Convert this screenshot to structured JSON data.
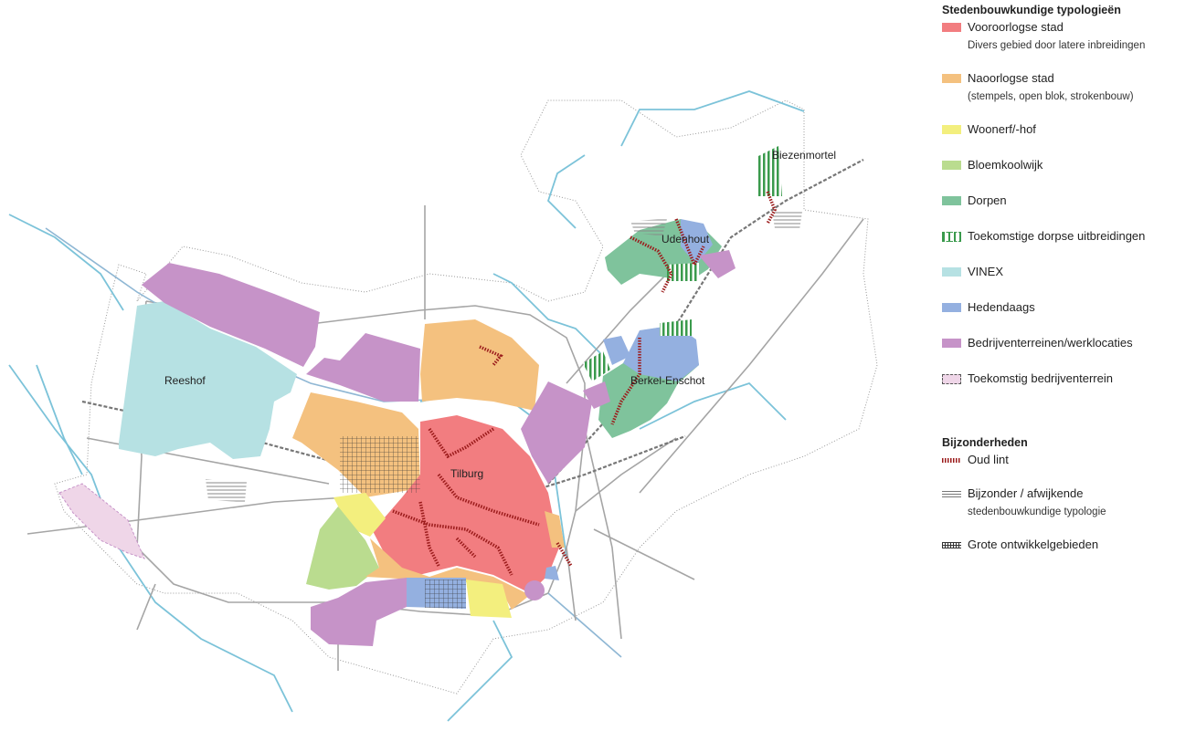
{
  "map": {
    "place_labels": {
      "reeshof": "Reeshof",
      "tilburg": "Tilburg",
      "udenhout": "Udenhout",
      "berkel_enschot": "Berkel-Enschot",
      "biezenmortel": "Biezenmortel"
    },
    "colors": {
      "vooroorlogse": "#f27d80",
      "naoorlogse": "#f4c17f",
      "woonerf": "#f3ef7e",
      "bloemkool": "#badc8f",
      "dorpen": "#7fc39c",
      "vinex": "#b6e1e3",
      "hedendaags": "#94b0e0",
      "bedrijven": "#c693c8",
      "toekomstig_bedrijven": "#efd6e8",
      "oud_lint": "#9b1b1b",
      "water": "#7cc3d9",
      "roads": "#a0a0a0"
    }
  },
  "legend": {
    "title": "Stedenbouwkundige typologieën",
    "items": [
      {
        "label": "Vooroorlogse stad",
        "sub": "Divers gebied door latere inbreidingen",
        "icon": "swatch",
        "color": "#f27d80"
      },
      {
        "label": "Naoorlogse stad",
        "sub": "(stempels, open blok, strokenbouw)",
        "icon": "swatch",
        "color": "#f4c17f"
      },
      {
        "label": "Woonerf/-hof",
        "icon": "swatch",
        "color": "#f3ef7e"
      },
      {
        "label": "Bloemkoolwijk",
        "icon": "swatch",
        "color": "#badc8f"
      },
      {
        "label": "Dorpen",
        "icon": "swatch",
        "color": "#7fc39c"
      },
      {
        "label": "Toekomstige dorpse uitbreidingen",
        "icon": "green-striped-dashed-box"
      },
      {
        "label": "VINEX",
        "icon": "swatch",
        "color": "#b6e1e3"
      },
      {
        "label": "Hedendaags",
        "icon": "swatch",
        "color": "#94b0e0"
      },
      {
        "label": "Bedrijventerreinen/werklocaties",
        "icon": "swatch",
        "color": "#c693c8"
      },
      {
        "label": "Toekomstig bedrijventerrein",
        "icon": "pink-dashed-box"
      }
    ],
    "special_title": "Bijzonderheden",
    "special_items": [
      {
        "label": "Oud lint",
        "icon": "red-hatched-line"
      },
      {
        "label": "Bijzonder / afwijkende",
        "sub": "stedenbouwkundige typologie",
        "icon": "grey-triple-line"
      },
      {
        "label": "Grote ontwikkelgebieden",
        "icon": "grid-hatch"
      }
    ]
  }
}
